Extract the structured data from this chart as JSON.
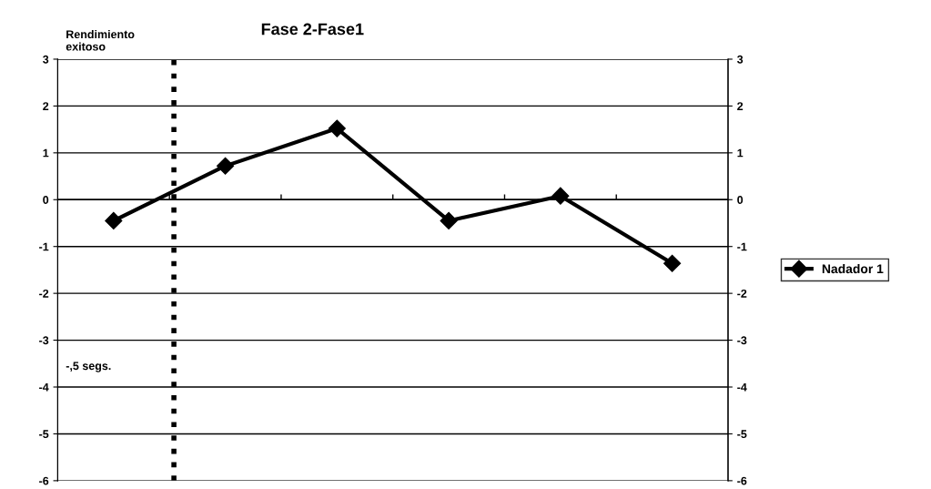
{
  "chart_data": {
    "type": "line",
    "title": "Fase 2-Fase1",
    "categories": [
      null,
      null,
      null,
      null,
      null,
      null
    ],
    "series": [
      {
        "name": "Nadador 1",
        "color": "#000000",
        "values": [
          -0.45,
          0.72,
          1.52,
          -0.45,
          0.08,
          -1.36
        ]
      }
    ],
    "ylim": [
      -6,
      3
    ],
    "yticks": [
      -6,
      -5,
      -4,
      -3,
      -2,
      -1,
      0,
      1,
      2,
      3
    ],
    "y2lim": [
      -6,
      3
    ],
    "y2ticks": [
      -6,
      -5,
      -4,
      -3,
      -2,
      -1,
      0,
      1,
      2,
      3
    ],
    "annotations": [
      "Rendimiento\nexitoso",
      "-,5 segs."
    ],
    "grid": "y",
    "legend": "right",
    "marker": "diamond",
    "line_style": "solid"
  }
}
